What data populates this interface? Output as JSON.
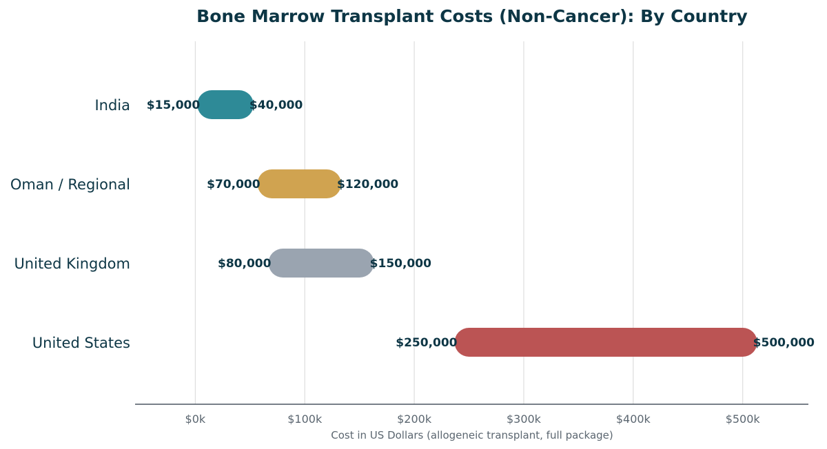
{
  "chart_data": {
    "type": "bar",
    "title": "Bone Marrow Transplant Costs (Non-Cancer): By Country",
    "xlabel": "Cost in US Dollars (allogeneic transplant, full package)",
    "ylabel": "",
    "xlim": [
      -55000,
      560000
    ],
    "grid": "vertical",
    "x_ticks": [
      {
        "value": 0,
        "label": "$0k"
      },
      {
        "value": 100000,
        "label": "$100k"
      },
      {
        "value": 200000,
        "label": "$200k"
      },
      {
        "value": 300000,
        "label": "$300k"
      },
      {
        "value": 400000,
        "label": "$400k"
      },
      {
        "value": 500000,
        "label": "$500k"
      }
    ],
    "categories": [
      "India",
      "Oman / Regional",
      "United Kingdom",
      "United States"
    ],
    "ranges": [
      {
        "category": "India",
        "low": 15000,
        "high": 40000,
        "low_label": "$15,000",
        "high_label": "$40,000",
        "color": "#2e8a97"
      },
      {
        "category": "Oman / Regional",
        "low": 70000,
        "high": 120000,
        "low_label": "$70,000",
        "high_label": "$120,000",
        "color": "#d0a350"
      },
      {
        "category": "United Kingdom",
        "low": 80000,
        "high": 150000,
        "low_label": "$80,000",
        "high_label": "$150,000",
        "color": "#9aa4b0"
      },
      {
        "category": "United States",
        "low": 250000,
        "high": 500000,
        "low_label": "$250,000",
        "high_label": "$500,000",
        "color": "#bb5454"
      }
    ]
  }
}
